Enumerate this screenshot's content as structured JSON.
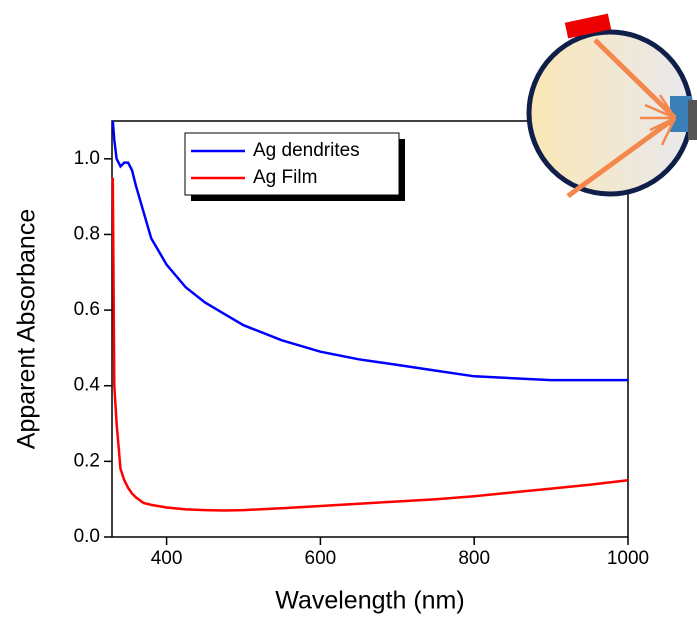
{
  "chart_data": {
    "type": "line",
    "x_label": "Wavelength (nm)",
    "y_label": "Apparent Absorbance",
    "x": [
      330,
      332,
      335,
      340,
      345,
      350,
      355,
      360,
      370,
      380,
      400,
      425,
      450,
      475,
      500,
      550,
      600,
      650,
      700,
      750,
      800,
      850,
      900,
      950,
      1000
    ],
    "series": [
      {
        "name": "Ag dendrites",
        "color": "#0000ff",
        "values": [
          1.1,
          1.05,
          1.0,
          0.98,
          0.99,
          0.99,
          0.97,
          0.93,
          0.86,
          0.79,
          0.72,
          0.66,
          0.62,
          0.59,
          0.56,
          0.52,
          0.49,
          0.47,
          0.455,
          0.44,
          0.425,
          0.42,
          0.415,
          0.415,
          0.415
        ]
      },
      {
        "name": "Ag Film",
        "color": "#ff0000",
        "values": [
          0.95,
          0.4,
          0.3,
          0.18,
          0.15,
          0.13,
          0.115,
          0.105,
          0.09,
          0.085,
          0.078,
          0.073,
          0.071,
          0.07,
          0.071,
          0.076,
          0.082,
          0.088,
          0.094,
          0.1,
          0.108,
          0.118,
          0.128,
          0.138,
          0.15
        ]
      }
    ],
    "xlim": [
      329,
      1000
    ],
    "ylim": [
      0,
      1.1
    ],
    "xticks": [
      400,
      600,
      800,
      1000
    ],
    "yticks": [
      {
        "value": 0,
        "label": "0.0"
      },
      0.2,
      0.4,
      0.6,
      0.8,
      {
        "value": 1,
        "label": "1.0"
      }
    ],
    "legend": "top-left"
  }
}
